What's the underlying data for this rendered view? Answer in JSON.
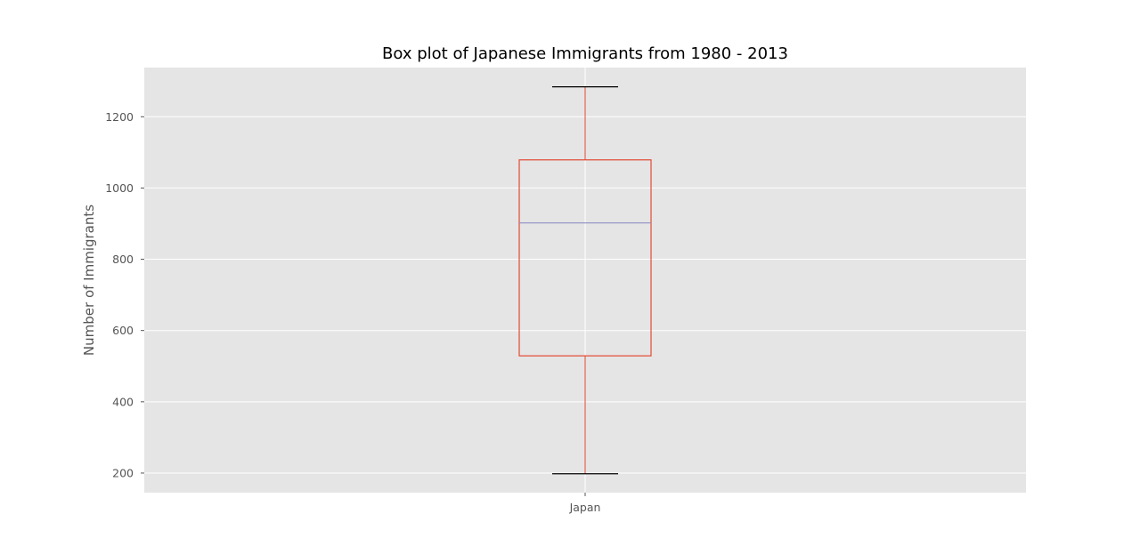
{
  "chart_data": {
    "type": "box",
    "title": "Box plot of Japanese Immigrants from 1980 - 2013",
    "xlabel": "",
    "ylabel": "Number of Immigrants",
    "categories": [
      "Japan"
    ],
    "boxes": [
      {
        "category": "Japan",
        "whisker_low": 198,
        "q1": 529,
        "median": 902,
        "q3": 1079,
        "whisker_high": 1284
      }
    ],
    "ylim": [
      145,
      1338
    ],
    "yticks": [
      200,
      400,
      600,
      800,
      1000,
      1200
    ],
    "grid": true,
    "colors": {
      "plot_background": "#e5e5e5",
      "grid": "#ffffff",
      "box": "#e24a33",
      "median": "#8e8ec4",
      "caps": "#000000",
      "text": "#555555"
    }
  }
}
